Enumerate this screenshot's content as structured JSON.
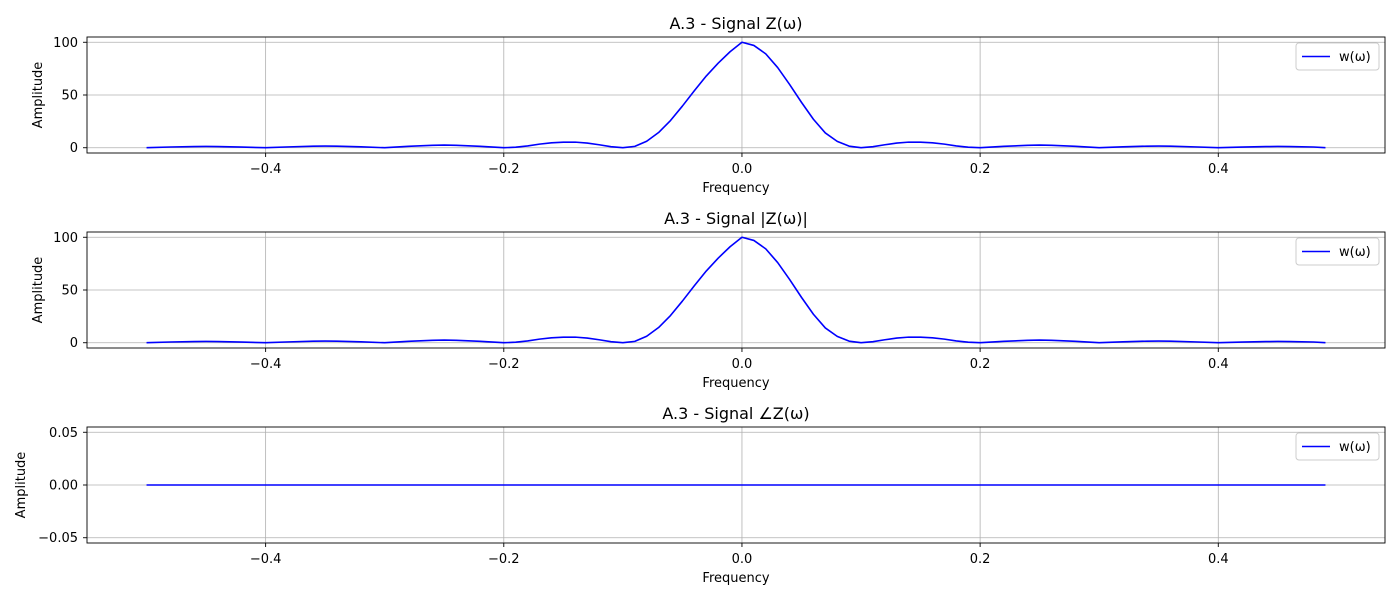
{
  "chart_data": [
    {
      "type": "line",
      "title": "A.3 - Signal Z(ω)",
      "xlabel": "Frequency",
      "ylabel": "Amplitude",
      "xlim": [
        -0.55,
        0.54
      ],
      "ylim": [
        -5,
        105
      ],
      "xticks": [
        -0.4,
        -0.2,
        0.0,
        0.2,
        0.4
      ],
      "xtick_labels": [
        "−0.4",
        "−0.2",
        "0.0",
        "0.2",
        "0.4"
      ],
      "yticks": [
        0,
        50,
        100
      ],
      "ytick_labels": [
        "0",
        "50",
        "100"
      ],
      "grid": true,
      "legend": "top-right",
      "series": [
        {
          "name": "w(ω)",
          "color": "#0000ff",
          "x": [
            -0.5,
            -0.48,
            -0.46,
            -0.45,
            -0.44,
            -0.42,
            -0.4,
            -0.38,
            -0.36,
            -0.35,
            -0.34,
            -0.32,
            -0.3,
            -0.28,
            -0.26,
            -0.25,
            -0.24,
            -0.22,
            -0.2,
            -0.19,
            -0.18,
            -0.17,
            -0.16,
            -0.15,
            -0.14,
            -0.13,
            -0.12,
            -0.11,
            -0.1,
            -0.09,
            -0.08,
            -0.07,
            -0.06,
            -0.05,
            -0.04,
            -0.03,
            -0.02,
            -0.01,
            0.0,
            0.01,
            0.02,
            0.03,
            0.04,
            0.05,
            0.06,
            0.07,
            0.08,
            0.09,
            0.1,
            0.11,
            0.12,
            0.13,
            0.14,
            0.15,
            0.16,
            0.17,
            0.18,
            0.19,
            0.2,
            0.22,
            0.24,
            0.25,
            0.26,
            0.28,
            0.3,
            0.32,
            0.34,
            0.35,
            0.36,
            0.38,
            0.4,
            0.42,
            0.44,
            0.45,
            0.46,
            0.48,
            0.49
          ],
          "y": [
            0.0,
            0.7,
            1.1,
            1.2,
            1.1,
            0.6,
            0.0,
            0.8,
            1.5,
            1.6,
            1.5,
            0.9,
            0.0,
            1.3,
            2.3,
            2.5,
            2.3,
            1.3,
            0.0,
            0.5,
            1.7,
            3.4,
            4.7,
            5.3,
            5.3,
            4.4,
            2.8,
            1.0,
            0.0,
            1.3,
            6.1,
            14.4,
            25.8,
            39.5,
            54.0,
            68.0,
            80.2,
            91.0,
            100.0,
            97.0,
            89.0,
            76.0,
            60.0,
            43.0,
            27.0,
            14.0,
            6.0,
            1.5,
            0.0,
            1.0,
            2.8,
            4.4,
            5.3,
            5.3,
            4.7,
            3.4,
            1.7,
            0.5,
            0.0,
            1.3,
            2.3,
            2.5,
            2.3,
            1.3,
            0.0,
            0.9,
            1.5,
            1.6,
            1.5,
            0.8,
            0.0,
            0.6,
            1.1,
            1.2,
            1.1,
            0.7,
            0.0
          ]
        }
      ]
    },
    {
      "type": "line",
      "title": "A.3 - Signal |Z(ω)|",
      "xlabel": "Frequency",
      "ylabel": "Amplitude",
      "xlim": [
        -0.55,
        0.54
      ],
      "ylim": [
        -5,
        105
      ],
      "xticks": [
        -0.4,
        -0.2,
        0.0,
        0.2,
        0.4
      ],
      "xtick_labels": [
        "−0.4",
        "−0.2",
        "0.0",
        "0.2",
        "0.4"
      ],
      "yticks": [
        0,
        50,
        100
      ],
      "ytick_labels": [
        "0",
        "50",
        "100"
      ],
      "grid": true,
      "legend": "top-right",
      "series": [
        {
          "name": "w(ω)",
          "color": "#0000ff",
          "x": [
            -0.5,
            -0.48,
            -0.46,
            -0.45,
            -0.44,
            -0.42,
            -0.4,
            -0.38,
            -0.36,
            -0.35,
            -0.34,
            -0.32,
            -0.3,
            -0.28,
            -0.26,
            -0.25,
            -0.24,
            -0.22,
            -0.2,
            -0.19,
            -0.18,
            -0.17,
            -0.16,
            -0.15,
            -0.14,
            -0.13,
            -0.12,
            -0.11,
            -0.1,
            -0.09,
            -0.08,
            -0.07,
            -0.06,
            -0.05,
            -0.04,
            -0.03,
            -0.02,
            -0.01,
            0.0,
            0.01,
            0.02,
            0.03,
            0.04,
            0.05,
            0.06,
            0.07,
            0.08,
            0.09,
            0.1,
            0.11,
            0.12,
            0.13,
            0.14,
            0.15,
            0.16,
            0.17,
            0.18,
            0.19,
            0.2,
            0.22,
            0.24,
            0.25,
            0.26,
            0.28,
            0.3,
            0.32,
            0.34,
            0.35,
            0.36,
            0.38,
            0.4,
            0.42,
            0.44,
            0.45,
            0.46,
            0.48,
            0.49
          ],
          "y": [
            0.0,
            0.7,
            1.1,
            1.2,
            1.1,
            0.6,
            0.0,
            0.8,
            1.5,
            1.6,
            1.5,
            0.9,
            0.0,
            1.3,
            2.3,
            2.5,
            2.3,
            1.3,
            0.0,
            0.5,
            1.7,
            3.4,
            4.7,
            5.3,
            5.3,
            4.4,
            2.8,
            1.0,
            0.0,
            1.3,
            6.1,
            14.4,
            25.8,
            39.5,
            54.0,
            68.0,
            80.2,
            91.0,
            100.0,
            97.0,
            89.0,
            76.0,
            60.0,
            43.0,
            27.0,
            14.0,
            6.0,
            1.5,
            0.0,
            1.0,
            2.8,
            4.4,
            5.3,
            5.3,
            4.7,
            3.4,
            1.7,
            0.5,
            0.0,
            1.3,
            2.3,
            2.5,
            2.3,
            1.3,
            0.0,
            0.9,
            1.5,
            1.6,
            1.5,
            0.8,
            0.0,
            0.6,
            1.1,
            1.2,
            1.1,
            0.7,
            0.0
          ]
        }
      ]
    },
    {
      "type": "line",
      "title": "A.3 - Signal ∠Z(ω)",
      "xlabel": "Frequency",
      "ylabel": "Amplitude",
      "xlim": [
        -0.55,
        0.54
      ],
      "ylim": [
        -0.055,
        0.055
      ],
      "xticks": [
        -0.4,
        -0.2,
        0.0,
        0.2,
        0.4
      ],
      "xtick_labels": [
        "−0.4",
        "−0.2",
        "0.0",
        "0.2",
        "0.4"
      ],
      "yticks": [
        -0.05,
        0.0,
        0.05
      ],
      "ytick_labels": [
        "−0.05",
        "0.00",
        "0.05"
      ],
      "grid": true,
      "legend": "top-right",
      "series": [
        {
          "name": "w(ω)",
          "color": "#0000ff",
          "x": [
            -0.5,
            0.49
          ],
          "y": [
            0.0,
            0.0
          ]
        }
      ]
    }
  ]
}
